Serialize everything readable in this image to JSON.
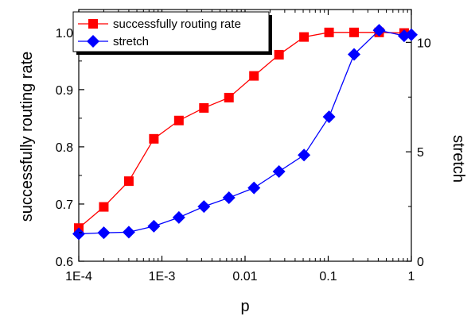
{
  "chart_data": {
    "type": "line",
    "xlabel": "p",
    "ylabel_left": "successfully routing rate",
    "ylabel_right": "stretch",
    "x_scale": "log",
    "xlim": [
      0.0001,
      1
    ],
    "ylim_left": [
      0.6,
      1.04
    ],
    "ylim_right": [
      0,
      11.5
    ],
    "x_ticks": [
      0.0001,
      0.001,
      0.01,
      0.1,
      1
    ],
    "x_tick_labels": [
      "1E-4",
      "1E-3",
      "0.01",
      "0.1",
      "1"
    ],
    "y_left_ticks": [
      0.6,
      0.7,
      0.8,
      0.9,
      1.0
    ],
    "y_left_tick_labels": [
      "0.6",
      "0.7",
      "0.8",
      "0.9",
      "1.0"
    ],
    "y_right_ticks": [
      0,
      5,
      10
    ],
    "y_right_tick_labels": [
      "0",
      "5",
      "10"
    ],
    "grid": false,
    "legend_position": "top-left",
    "series": [
      {
        "name": "successfully routing rate",
        "axis": "left",
        "color": "#ff0000",
        "marker": "square",
        "x": [
          0.0001,
          0.0002,
          0.0004,
          0.0008,
          0.0016,
          0.0032,
          0.0064,
          0.0128,
          0.0256,
          0.0512,
          0.1024,
          0.2048,
          0.4096,
          0.8192
        ],
        "values": [
          0.658,
          0.695,
          0.74,
          0.814,
          0.846,
          0.868,
          0.886,
          0.924,
          0.961,
          0.992,
          1.0,
          1.0,
          1.0,
          0.999
        ]
      },
      {
        "name": "stretch",
        "axis": "right",
        "color": "#0000ff",
        "marker": "diamond",
        "x": [
          0.0001,
          0.0002,
          0.0004,
          0.0008,
          0.0016,
          0.0032,
          0.0064,
          0.0128,
          0.0256,
          0.0512,
          0.1024,
          0.2048,
          0.4096,
          0.8192,
          1.0
        ],
        "values": [
          1.25,
          1.3,
          1.33,
          1.6,
          2.0,
          2.5,
          2.9,
          3.35,
          4.1,
          4.85,
          6.6,
          9.45,
          10.55,
          10.3,
          10.35
        ]
      }
    ]
  }
}
